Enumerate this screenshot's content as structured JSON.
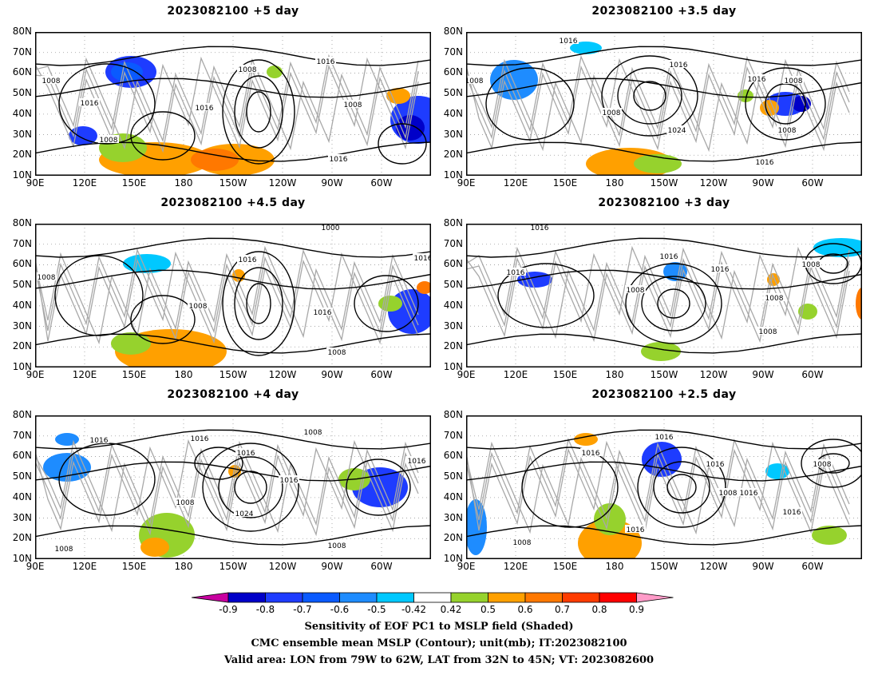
{
  "panels": [
    {
      "title": "2023082100 +5 day"
    },
    {
      "title": "2023082100 +3.5 day"
    },
    {
      "title": "2023082100 +4.5 day"
    },
    {
      "title": "2023082100 +3 day"
    },
    {
      "title": "2023082100 +4 day"
    },
    {
      "title": "2023082100 +2.5 day"
    }
  ],
  "axes": {
    "lat_labels": [
      "80N",
      "70N",
      "60N",
      "50N",
      "40N",
      "30N",
      "20N",
      "10N"
    ],
    "lon_labels": [
      "90E",
      "120E",
      "150E",
      "180",
      "150W",
      "120W",
      "90W",
      "60W"
    ]
  },
  "contour_labels": {
    "p0": [
      "1008",
      "1016",
      "1008",
      "1016",
      "1008",
      "1016",
      "1008",
      "1016"
    ],
    "p1": [
      "1016",
      "1008",
      "1016",
      "1008",
      "1024",
      "1016",
      "1008",
      "1008",
      "1016"
    ],
    "p2": [
      "1008",
      "1000",
      "1016",
      "1008",
      "1016",
      "1016",
      "1008"
    ],
    "p3": [
      "1016",
      "1016",
      "1016",
      "1008",
      "1016",
      "1008",
      "1008",
      "1008"
    ],
    "p4": [
      "1016",
      "1016",
      "1016",
      "1008",
      "1008",
      "1024",
      "1016",
      "1016",
      "1008",
      "1008"
    ],
    "p5": [
      "1016",
      "1016",
      "1016",
      "1008",
      "1016",
      "1008",
      "1016",
      "1016",
      "1008"
    ]
  },
  "colorbar": {
    "labels": [
      "-0.9",
      "-0.8",
      "-0.7",
      "-0.6",
      "-0.5",
      "-0.42",
      "0.42",
      "0.5",
      "0.6",
      "0.7",
      "0.8",
      "0.9"
    ],
    "colors": [
      "#c800a0",
      "#0000c8",
      "#1e3cff",
      "#0a5aff",
      "#1e8cff",
      "#00c8ff",
      "#ffffff",
      "#96d22d",
      "#ffa000",
      "#ff7800",
      "#ff3c00",
      "#ff0000",
      "#ff9bc8"
    ]
  },
  "footer": {
    "line1": "Sensitivity of EOF PC1 to MSLP field (Shaded)",
    "line2": "CMC ensemble mean MSLP (Contour); unit(mb); IT:2023082100",
    "line3": "Valid area: LON from 79W to 62W, LAT from 32N to 45N; VT: 2023082600"
  }
}
